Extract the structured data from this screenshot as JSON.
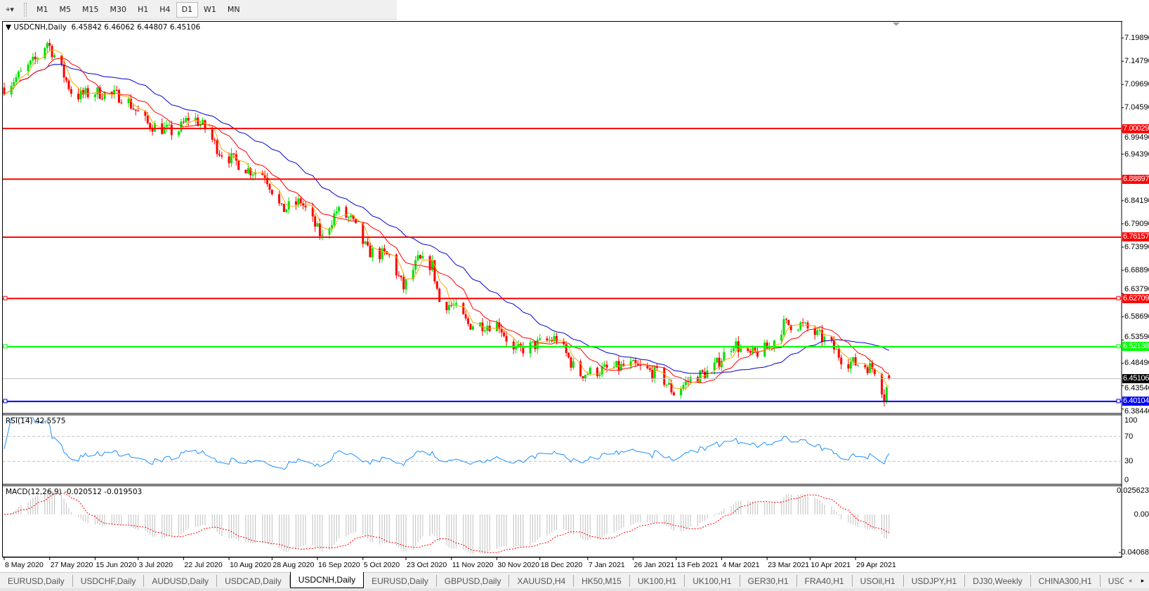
{
  "toolbar": {
    "tool_icon": "crosshair-tool-icon",
    "timeframes": [
      "M1",
      "M5",
      "M15",
      "M30",
      "H1",
      "H4",
      "D1",
      "W1",
      "MN"
    ],
    "active_timeframe": "D1"
  },
  "chart": {
    "header": "USDCNH,Daily",
    "ohlc": "6.45842 6.46062 6.44807 6.45106",
    "rsi_title": "RSI(14) 42.5575",
    "macd_title": "MACD(12,26,9) -0.020512 -0.019503"
  },
  "colors": {
    "bull": "#00e000",
    "bear": "#ff0000",
    "ma_fast": "#ffa500",
    "ma_mid": "#ff0000",
    "ma_slow": "#0000cc",
    "rsi": "#1e90ff",
    "macd_signal": "#ff0000",
    "macd_hist": "#c0c0c0"
  },
  "chart_data": {
    "type": "candlestick",
    "symbol": "USDCNH",
    "timeframe": "Daily",
    "last": {
      "open": 6.45842,
      "high": 6.46062,
      "low": 6.44807,
      "close": 6.45106
    },
    "price_ticks": [
      "7.19890",
      "7.14790",
      "7.09690",
      "7.04590",
      "6.99490",
      "6.94390",
      "6.84190",
      "6.79090",
      "6.73990",
      "6.68890",
      "6.63790",
      "6.58690",
      "6.53590",
      "6.48490",
      "6.43540",
      "6.38440"
    ],
    "price_range": [
      6.3844,
      7.2289
    ],
    "date_ticks": [
      "8 May 2020",
      "27 May 2020",
      "15 Jun 2020",
      "3 Jul 2020",
      "22 Jul 2020",
      "10 Aug 2020",
      "28 Aug 2020",
      "16 Sep 2020",
      "5 Oct 2020",
      "23 Oct 2020",
      "11 Nov 2020",
      "30 Nov 2020",
      "18 Dec 2020",
      "7 Jan 2021",
      "26 Jan 2021",
      "13 Feb 2021",
      "4 Mar 2021",
      "23 Mar 2021",
      "10 Apr 2021",
      "29 Apr 2021"
    ],
    "date_tick_dates": [
      "2020-05-08",
      "2020-05-27",
      "2020-06-15",
      "2020-07-03",
      "2020-07-22",
      "2020-08-10",
      "2020-08-28",
      "2020-09-16",
      "2020-10-05",
      "2020-10-23",
      "2020-11-11",
      "2020-11-30",
      "2020-12-18",
      "2021-01-07",
      "2021-01-26",
      "2021-02-13",
      "2021-03-04",
      "2021-03-23",
      "2021-04-10",
      "2021-04-29"
    ],
    "approx_closes": [
      [
        "2020-05-08",
        7.09
      ],
      [
        "2020-05-15",
        7.12
      ],
      [
        "2020-05-21",
        7.15
      ],
      [
        "2020-05-26",
        7.19
      ],
      [
        "2020-05-31",
        7.14
      ],
      [
        "2020-06-06",
        7.07
      ],
      [
        "2020-06-15",
        7.08
      ],
      [
        "2020-06-27",
        7.07
      ],
      [
        "2020-07-07",
        7.01
      ],
      [
        "2020-07-19",
        6.99
      ],
      [
        "2020-07-25",
        7.03
      ],
      [
        "2020-07-31",
        7.0
      ],
      [
        "2020-08-06",
        6.95
      ],
      [
        "2020-08-18",
        6.91
      ],
      [
        "2020-08-25",
        6.9
      ],
      [
        "2020-09-01",
        6.82
      ],
      [
        "2020-09-09",
        6.84
      ],
      [
        "2020-09-18",
        6.76
      ],
      [
        "2020-09-24",
        6.82
      ],
      [
        "2020-09-30",
        6.8
      ],
      [
        "2020-10-07",
        6.73
      ],
      [
        "2020-10-16",
        6.72
      ],
      [
        "2020-10-22",
        6.65
      ],
      [
        "2020-10-28",
        6.71
      ],
      [
        "2020-11-03",
        6.7
      ],
      [
        "2020-11-06",
        6.62
      ],
      [
        "2020-11-12",
        6.61
      ],
      [
        "2020-11-18",
        6.57
      ],
      [
        "2020-12-01",
        6.57
      ],
      [
        "2020-12-07",
        6.51
      ],
      [
        "2020-12-19",
        6.53
      ],
      [
        "2020-12-25",
        6.54
      ],
      [
        "2021-01-03",
        6.46
      ],
      [
        "2021-01-13",
        6.47
      ],
      [
        "2021-01-25",
        6.48
      ],
      [
        "2021-02-06",
        6.46
      ],
      [
        "2021-02-12",
        6.42
      ],
      [
        "2021-02-19",
        6.45
      ],
      [
        "2021-02-28",
        6.47
      ],
      [
        "2021-03-09",
        6.53
      ],
      [
        "2021-03-15",
        6.5
      ],
      [
        "2021-03-24",
        6.52
      ],
      [
        "2021-03-30",
        6.57
      ],
      [
        "2021-04-06",
        6.57
      ],
      [
        "2021-04-12",
        6.55
      ],
      [
        "2021-04-18",
        6.53
      ],
      [
        "2021-04-24",
        6.49
      ],
      [
        "2021-05-03",
        6.48
      ],
      [
        "2021-05-08",
        6.47
      ],
      [
        "2021-05-11",
        6.41
      ],
      [
        "2021-05-13",
        6.45106
      ]
    ],
    "levels": [
      {
        "price": 7.00029,
        "label": "7.00029",
        "color": "#ff0000",
        "selected": false
      },
      {
        "price": 6.88897,
        "label": "6.88897",
        "color": "#ff0000",
        "selected": false
      },
      {
        "price": 6.76157,
        "label": "6.76157",
        "color": "#ff0000",
        "selected": false
      },
      {
        "price": 6.62709,
        "label": "6.62709",
        "color": "#ff0000",
        "selected": true
      },
      {
        "price": 6.52138,
        "label": "6.52138",
        "color": "#00ff00",
        "selected": true
      },
      {
        "price": 6.40104,
        "label": "6.40104",
        "color": "#0000ff",
        "selected": true
      }
    ],
    "current_price": {
      "price": 6.45106,
      "label": "6.45106"
    },
    "rsi": {
      "period": 14,
      "value": 42.5575,
      "levels": [
        70,
        30
      ],
      "ticks": [
        "100",
        "70",
        "30",
        "0"
      ],
      "range": [
        0,
        100
      ]
    },
    "macd": {
      "fast": 12,
      "slow": 26,
      "signal": 9,
      "main": -0.020512,
      "signal_value": -0.019503,
      "ticks": [
        "0.025623",
        "0.00",
        "-0.04068"
      ],
      "range": [
        -0.04068,
        0.025623
      ]
    }
  },
  "tabs": {
    "items": [
      "EURUSD,Daily",
      "USDCHF,Daily",
      "AUDUSD,Daily",
      "USDCAD,Daily",
      "USDCNH,Daily",
      "EURUSD,Daily",
      "GBPUSD,Daily",
      "XAUUSD,H4",
      "HK50,M15",
      "UK100,H1",
      "UK100,H1",
      "GER30,H1",
      "FRA40,H1",
      "USOil,H1",
      "USDJPY,H1",
      "DJ30,Weekly",
      "CHINA300,H1",
      "USC"
    ],
    "active": "USDCNH,Daily",
    "scroll_left": "◂",
    "scroll_right": "▸"
  }
}
